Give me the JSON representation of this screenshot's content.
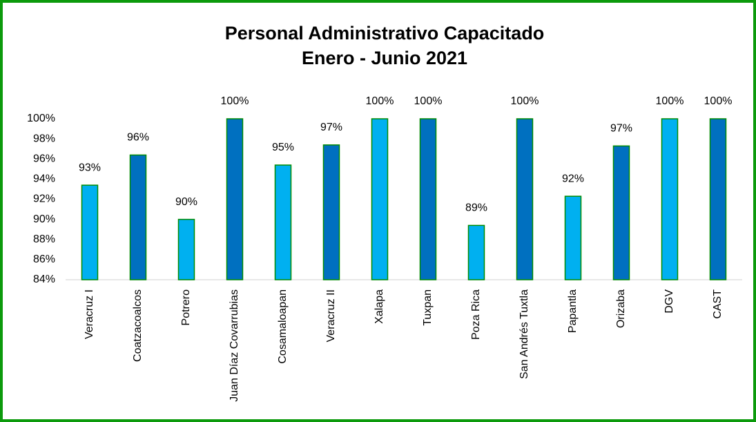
{
  "chart_data": {
    "type": "bar",
    "title": [
      "Personal Administrativo Capacitado",
      "Enero - Junio 2021"
    ],
    "categories": [
      "Veracruz I",
      "Coatzacoalcos",
      "Potrero",
      "Juan Díaz Covarrubias",
      "Cosamaloapan",
      "Veracruz II",
      "Xalapa",
      "Tuxpan",
      "Poza Rica",
      "San Andrés Tuxtla",
      "Papantla",
      "Orizaba",
      "DGV",
      "CAST"
    ],
    "values": [
      93.4,
      96.4,
      90,
      100,
      95.4,
      97.4,
      100,
      100,
      89.4,
      100,
      92.3,
      97.3,
      100,
      100
    ],
    "value_labels": [
      "93%",
      "96%",
      "90%",
      "100%",
      "95%",
      "97%",
      "100%",
      "100%",
      "89%",
      "100%",
      "92%",
      "97%",
      "100%",
      "100%"
    ],
    "colors": [
      "#00b0f0",
      "#0070c0",
      "#00b0f0",
      "#0070c0",
      "#00b0f0",
      "#0070c0",
      "#00b0f0",
      "#0070c0",
      "#00b0f0",
      "#0070c0",
      "#00b0f0",
      "#0070c0",
      "#00b0f0",
      "#0070c0"
    ],
    "bar_border_color": "#008a00",
    "ylim": [
      84,
      100
    ],
    "yticks": [
      {
        "value": 84,
        "label": "84%"
      },
      {
        "value": 86,
        "label": "86%"
      },
      {
        "value": 88,
        "label": "88%"
      },
      {
        "value": 90,
        "label": "90%"
      },
      {
        "value": 92,
        "label": "92%"
      },
      {
        "value": 94,
        "label": "94%"
      },
      {
        "value": 96,
        "label": "96%"
      },
      {
        "value": 98,
        "label": "98%"
      },
      {
        "value": 100,
        "label": "100%"
      }
    ],
    "grid": false
  }
}
